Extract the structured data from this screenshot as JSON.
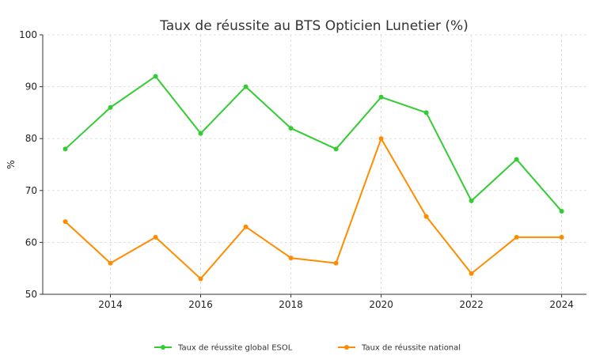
{
  "chart_data": {
    "type": "line",
    "title": "Taux de réussite au BTS Opticien Lunetier (%)",
    "xlabel": "",
    "ylabel": "%",
    "x": [
      2013,
      2014,
      2015,
      2016,
      2017,
      2018,
      2019,
      2020,
      2021,
      2022,
      2023,
      2024
    ],
    "xlim": [
      2012.5,
      2024.55
    ],
    "ylim": [
      50,
      100
    ],
    "xticks": [
      2014,
      2016,
      2018,
      2020,
      2022,
      2024
    ],
    "yticks": [
      50,
      60,
      70,
      80,
      90,
      100
    ],
    "grid": true,
    "legend_position": "bottom-center",
    "series": [
      {
        "name": "Taux de réussite global ESOL",
        "color": "#33cc33",
        "values": [
          78,
          86,
          92,
          81,
          90,
          82,
          78,
          88,
          85,
          68,
          76,
          66
        ]
      },
      {
        "name": "Taux de réussite national",
        "color": "#ff8c00",
        "values": [
          64,
          56,
          61,
          53,
          63,
          57,
          56,
          80,
          65,
          54,
          61,
          61
        ]
      }
    ]
  }
}
